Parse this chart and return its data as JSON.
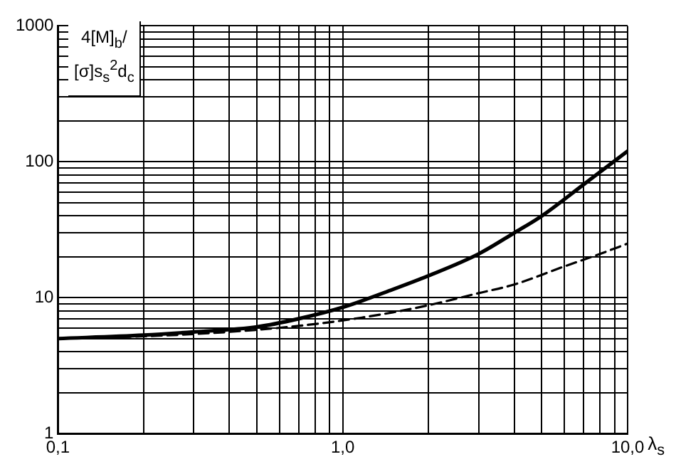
{
  "chart_data": {
    "type": "line",
    "ylabel": "4[M]$_{b}$/[σ]s$_{s}$$^{2}$d$_{c}$",
    "xlabel": "λ$_{s}$",
    "log": "xy",
    "grid": true,
    "legend": false,
    "marker": "none",
    "xlim": [
      0.1,
      10
    ],
    "ylim": [
      1,
      1000
    ],
    "xticks": [
      {
        "value": 0.1,
        "label": "0,1"
      },
      {
        "value": 0.2,
        "label": null
      },
      {
        "value": 0.3,
        "label": null
      },
      {
        "value": 0.4,
        "label": null
      },
      {
        "value": 0.5,
        "label": null
      },
      {
        "value": 0.6,
        "label": null
      },
      {
        "value": 0.7,
        "label": null
      },
      {
        "value": 0.8,
        "label": null
      },
      {
        "value": 0.9,
        "label": null
      },
      {
        "value": 1,
        "label": "1,0"
      },
      {
        "value": 2,
        "label": null
      },
      {
        "value": 3,
        "label": null
      },
      {
        "value": 4,
        "label": null
      },
      {
        "value": 5,
        "label": null
      },
      {
        "value": 6,
        "label": null
      },
      {
        "value": 7,
        "label": null
      },
      {
        "value": 8,
        "label": null
      },
      {
        "value": 9,
        "label": null
      },
      {
        "value": 10,
        "label": "10,0"
      }
    ],
    "yticks": [
      1,
      {
        "value": 2,
        "label": null
      },
      {
        "value": 3,
        "label": null
      },
      {
        "value": 4,
        "label": null
      },
      {
        "value": 5,
        "label": null
      },
      {
        "value": 6,
        "label": null
      },
      {
        "value": 7,
        "label": null
      },
      {
        "value": 8,
        "label": null
      },
      {
        "value": 9,
        "label": null
      },
      10,
      {
        "value": 20,
        "label": null
      },
      {
        "value": 30,
        "label": null
      },
      {
        "value": 40,
        "label": null
      },
      {
        "value": 50,
        "label": null
      },
      {
        "value": 60,
        "label": null
      },
      {
        "value": 70,
        "label": null
      },
      {
        "value": 80,
        "label": null
      },
      {
        "value": 90,
        "label": null
      },
      100,
      {
        "value": 200,
        "label": null
      },
      {
        "value": 300,
        "label": null
      },
      {
        "value": 400,
        "label": null
      },
      {
        "value": 500,
        "label": null
      },
      {
        "value": 600,
        "label": null
      },
      {
        "value": 700,
        "label": null
      },
      {
        "value": 800,
        "label": null
      },
      {
        "value": 900,
        "label": null
      },
      1000
    ],
    "series": [
      {
        "color": "#000000",
        "line_style": "solid",
        "x": [
          0.1,
          0.2,
          0.3,
          0.5,
          0.7,
          1,
          1.5,
          2,
          3,
          4,
          5,
          7,
          10
        ],
        "values": [
          5.0,
          5.3,
          5.6,
          6.1,
          7,
          8.5,
          11.5,
          14.5,
          21,
          30,
          40,
          68,
          120
        ]
      },
      {
        "color": "#000000",
        "line_style": "dashed",
        "x": [
          0.1,
          0.2,
          0.3,
          0.5,
          0.7,
          1,
          1.5,
          2,
          3,
          4,
          6,
          8,
          10
        ],
        "values": [
          5.0,
          5.2,
          5.4,
          5.8,
          6.2,
          6.8,
          7.8,
          8.8,
          10.8,
          12.5,
          17,
          21,
          25
        ]
      }
    ]
  }
}
